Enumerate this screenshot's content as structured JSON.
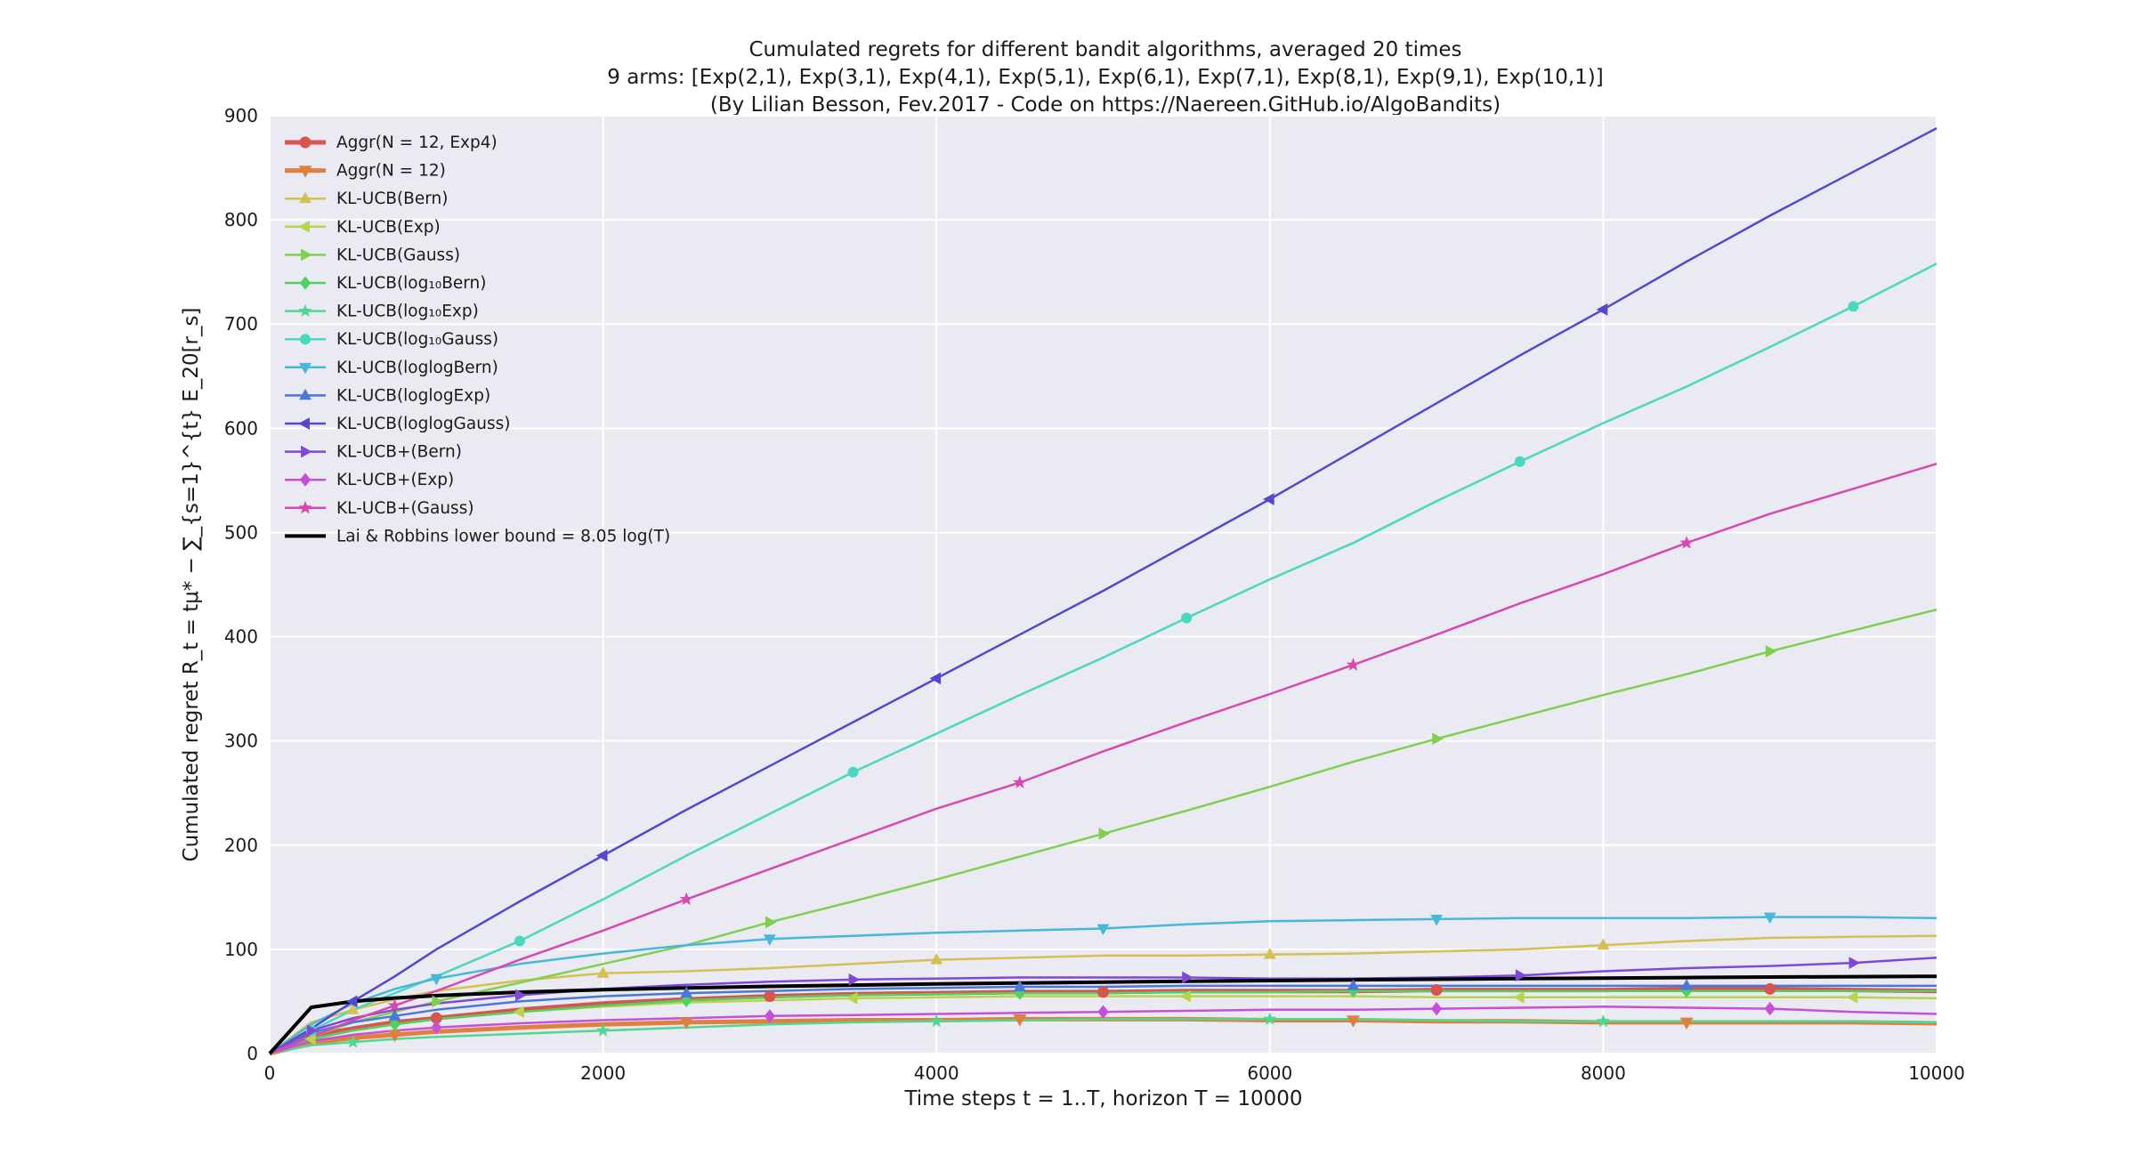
{
  "chart_data": {
    "type": "line",
    "title": [
      "Cumulated regrets for different bandit algorithms, averaged 20 times",
      "9 arms: [Exp(2,1), Exp(3,1), Exp(4,1), Exp(5,1), Exp(6,1), Exp(7,1), Exp(8,1), Exp(9,1), Exp(10,1)]",
      "(By Lilian Besson, Fev.2017 - Code on https://Naereen.GitHub.io/AlgoBandits)"
    ],
    "xlabel": "Time steps t = 1..T, horizon T = 10000",
    "ylabel": "Cumulated regret R_t = tμ* − ∑_{s=1}^{t} E_20[r_s]",
    "xlim": [
      0,
      10000
    ],
    "ylim": [
      0,
      900
    ],
    "xticks": [
      0,
      2000,
      4000,
      6000,
      8000,
      10000
    ],
    "yticks": [
      0,
      100,
      200,
      300,
      400,
      500,
      600,
      700,
      800,
      900
    ],
    "grid": true,
    "legend_position": "top-left",
    "x": [
      0,
      250,
      500,
      750,
      1000,
      1500,
      2000,
      2500,
      3000,
      3500,
      4000,
      4500,
      5000,
      5500,
      6000,
      6500,
      7000,
      7500,
      8000,
      8500,
      9000,
      9500,
      10000
    ],
    "series": [
      {
        "name": "Aggr(N = 12, Exp4)",
        "color": "#d9534f",
        "marker": "circle",
        "width": 5,
        "values": [
          0,
          17,
          24,
          30,
          34,
          42,
          48,
          52,
          55,
          57,
          58,
          59,
          59,
          60,
          60,
          60,
          61,
          61,
          61,
          62,
          62,
          61,
          60
        ]
      },
      {
        "name": "Aggr(N = 12)",
        "color": "#e08040",
        "marker": "triangle-down",
        "width": 5,
        "values": [
          0,
          10,
          15,
          18,
          21,
          25,
          28,
          30,
          31,
          32,
          32,
          33,
          33,
          33,
          32,
          32,
          31,
          31,
          30,
          30,
          30,
          30,
          29
        ]
      },
      {
        "name": "KL-UCB(Bern)",
        "color": "#d4c050",
        "marker": "triangle-up",
        "width": 2.5,
        "values": [
          0,
          30,
          42,
          52,
          60,
          70,
          77,
          79,
          82,
          86,
          90,
          92,
          94,
          94,
          95,
          96,
          98,
          100,
          104,
          108,
          111,
          112,
          113
        ]
      },
      {
        "name": "KL-UCB(Exp)",
        "color": "#b8d44a",
        "marker": "triangle-left",
        "width": 2.5,
        "values": [
          0,
          14,
          22,
          28,
          33,
          40,
          45,
          49,
          51,
          53,
          54,
          55,
          55,
          55,
          55,
          55,
          54,
          54,
          54,
          54,
          54,
          54,
          53
        ]
      },
      {
        "name": "KL-UCB(Gauss)",
        "color": "#80d050",
        "marker": "triangle-right",
        "width": 2.5,
        "values": [
          0,
          16,
          30,
          40,
          50,
          68,
          86,
          104,
          126,
          146,
          167,
          189,
          211,
          233,
          256,
          280,
          302,
          323,
          344,
          364,
          386,
          406,
          426
        ]
      },
      {
        "name": "KL-UCB(log₁₀Bern)",
        "color": "#50d060",
        "marker": "diamond",
        "width": 2.5,
        "values": [
          0,
          14,
          22,
          28,
          33,
          40,
          46,
          51,
          54,
          56,
          57,
          58,
          58,
          59,
          59,
          60,
          60,
          60,
          60,
          60,
          60,
          60,
          60
        ]
      },
      {
        "name": "KL-UCB(log₁₀Exp)",
        "color": "#50d890",
        "marker": "star",
        "width": 2.5,
        "values": [
          0,
          8,
          11,
          14,
          16,
          19,
          22,
          25,
          28,
          30,
          31,
          32,
          33,
          33,
          33,
          33,
          32,
          31,
          31,
          31,
          31,
          31,
          30
        ]
      },
      {
        "name": "KL-UCB(log₁₀Gauss)",
        "color": "#48d8c0",
        "marker": "circle",
        "width": 2.5,
        "values": [
          0,
          22,
          42,
          58,
          74,
          108,
          148,
          190,
          230,
          270,
          307,
          344,
          380,
          418,
          455,
          490,
          530,
          568,
          605,
          640,
          678,
          717,
          758
        ]
      },
      {
        "name": "KL-UCB(loglogBern)",
        "color": "#48b8d8",
        "marker": "triangle-down",
        "width": 2.5,
        "values": [
          0,
          28,
          48,
          62,
          72,
          86,
          96,
          104,
          110,
          113,
          116,
          118,
          120,
          124,
          127,
          128,
          129,
          130,
          130,
          130,
          131,
          131,
          130
        ]
      },
      {
        "name": "KL-UCB(loglogExp)",
        "color": "#4878d8",
        "marker": "triangle-up",
        "width": 2.5,
        "values": [
          0,
          20,
          30,
          36,
          42,
          50,
          55,
          58,
          60,
          62,
          63,
          64,
          64,
          65,
          65,
          65,
          65,
          65,
          65,
          65,
          65,
          65,
          65
        ]
      },
      {
        "name": "KL-UCB(loglogGauss)",
        "color": "#5448d0",
        "marker": "triangle-left",
        "width": 2.5,
        "values": [
          0,
          24,
          50,
          74,
          100,
          146,
          190,
          234,
          276,
          318,
          360,
          402,
          444,
          488,
          532,
          578,
          624,
          670,
          714,
          760,
          804,
          846,
          888
        ]
      },
      {
        "name": "KL-UCB+(Bern)",
        "color": "#8048d8",
        "marker": "triangle-right",
        "width": 2.5,
        "values": [
          0,
          22,
          34,
          42,
          48,
          56,
          62,
          66,
          69,
          71,
          72,
          73,
          73,
          73,
          72,
          72,
          73,
          75,
          79,
          82,
          84,
          87,
          92
        ]
      },
      {
        "name": "KL-UCB+(Exp)",
        "color": "#c850d8",
        "marker": "diamond",
        "width": 2.5,
        "values": [
          0,
          12,
          18,
          22,
          25,
          29,
          32,
          34,
          36,
          37,
          38,
          39,
          40,
          41,
          42,
          42,
          43,
          44,
          45,
          44,
          43,
          40,
          38
        ]
      },
      {
        "name": "KL-UCB+(Gauss)",
        "color": "#d848b0",
        "marker": "star",
        "width": 2.5,
        "values": [
          0,
          16,
          32,
          46,
          60,
          90,
          118,
          148,
          177,
          206,
          235,
          260,
          290,
          318,
          345,
          373,
          402,
          432,
          460,
          490,
          518,
          542,
          566
        ]
      },
      {
        "name": "Lai & Robbins lower bound = 8.05 log(T)",
        "color": "#000000",
        "marker": "none",
        "width": 4,
        "values": [
          0,
          44.4,
          50.0,
          53.3,
          55.6,
          58.9,
          61.2,
          63.0,
          64.5,
          65.7,
          66.8,
          67.7,
          68.6,
          69.3,
          70.0,
          70.7,
          71.3,
          71.9,
          72.4,
          72.9,
          73.4,
          73.8,
          74.1
        ]
      }
    ]
  }
}
